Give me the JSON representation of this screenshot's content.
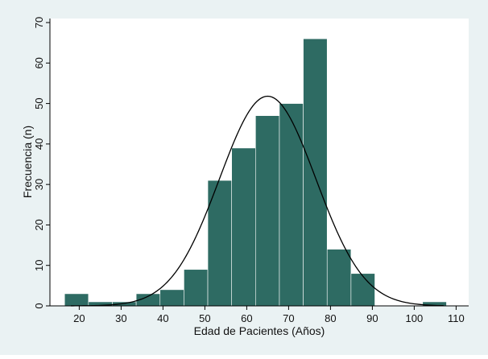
{
  "chart_data": {
    "type": "bar",
    "subtype": "histogram",
    "title": "",
    "xlabel": "Edad de Pacientes (Años)",
    "ylabel": "Frecuencia (n)",
    "xlim": [
      13,
      113
    ],
    "ylim": [
      0,
      71
    ],
    "xticks": [
      20,
      30,
      40,
      50,
      60,
      70,
      80,
      90,
      100,
      110
    ],
    "yticks": [
      0,
      10,
      20,
      30,
      40,
      50,
      60,
      70
    ],
    "bar_color": "#2e6b63",
    "plot_background": "#ffffff",
    "outer_background": "#eaf2f3",
    "grid": false,
    "bins": [
      {
        "x0": 16.5,
        "x1": 22.2,
        "value": 3
      },
      {
        "x0": 22.2,
        "x1": 27.9,
        "value": 1
      },
      {
        "x0": 27.9,
        "x1": 33.6,
        "value": 1
      },
      {
        "x0": 33.6,
        "x1": 39.3,
        "value": 3
      },
      {
        "x0": 39.3,
        "x1": 45.0,
        "value": 4
      },
      {
        "x0": 45.0,
        "x1": 50.7,
        "value": 9
      },
      {
        "x0": 50.7,
        "x1": 56.4,
        "value": 31
      },
      {
        "x0": 56.4,
        "x1": 62.1,
        "value": 39
      },
      {
        "x0": 62.1,
        "x1": 67.8,
        "value": 47
      },
      {
        "x0": 67.8,
        "x1": 73.5,
        "value": 50
      },
      {
        "x0": 73.5,
        "x1": 79.2,
        "value": 66
      },
      {
        "x0": 79.2,
        "x1": 84.9,
        "value": 14
      },
      {
        "x0": 84.9,
        "x1": 90.6,
        "value": 8
      },
      {
        "x0": 90.6,
        "x1": 96.3,
        "value": 0
      },
      {
        "x0": 96.3,
        "x1": 102.0,
        "value": 0
      },
      {
        "x0": 102.0,
        "x1": 107.7,
        "value": 1
      }
    ],
    "normal_curve": {
      "mean": 65,
      "sd": 11.5,
      "peak": 51.8,
      "color": "#000000"
    }
  }
}
